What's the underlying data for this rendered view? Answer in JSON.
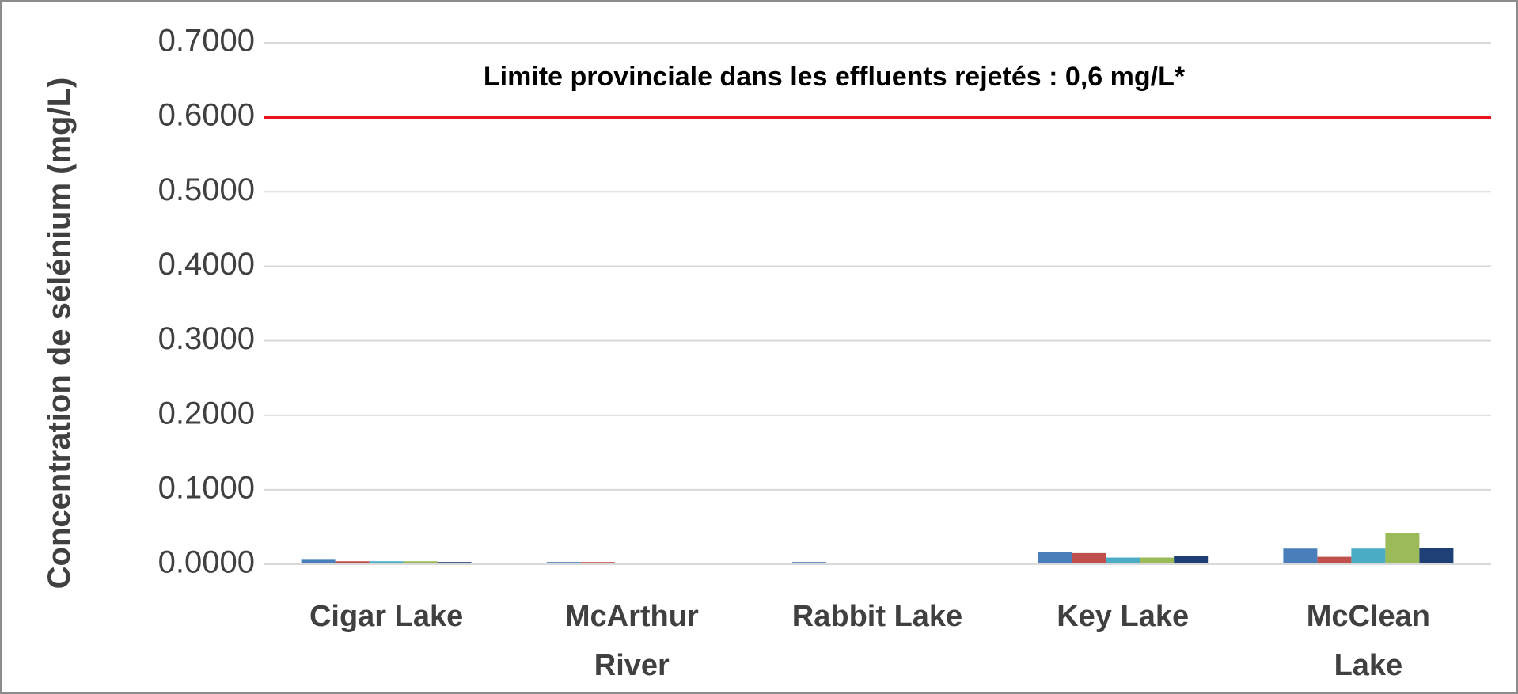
{
  "chart_data": {
    "type": "bar",
    "categories": [
      "Cigar Lake",
      "McArthur River",
      "Rabbit Lake",
      "Key Lake",
      "McClean Lake"
    ],
    "series": [
      {
        "color": "#4a7ebb",
        "values": [
          0.006,
          0.003,
          0.003,
          0.017,
          0.021
        ]
      },
      {
        "color": "#c0504d",
        "values": [
          0.004,
          0.003,
          0.002,
          0.015,
          0.01
        ]
      },
      {
        "color": "#4bacc6",
        "values": [
          0.004,
          0.002,
          0.002,
          0.009,
          0.021
        ]
      },
      {
        "color": "#9bbb59",
        "values": [
          0.004,
          0.002,
          0.002,
          0.009,
          0.042
        ]
      },
      {
        "color": "#1f3f77",
        "values": [
          0.003,
          0.001,
          0.002,
          0.011,
          0.022
        ]
      }
    ],
    "y_label": "Concentration de sélénium (mg/L)",
    "ylim": [
      0,
      0.7
    ],
    "yticks": [
      {
        "value": 0,
        "label": "0.0000"
      },
      {
        "value": 0.1,
        "label": "0.1000"
      },
      {
        "value": 0.2,
        "label": "0.2000"
      },
      {
        "value": 0.3,
        "label": "0.3000"
      },
      {
        "value": 0.4,
        "label": "0.4000"
      },
      {
        "value": 0.5,
        "label": "0.5000"
      },
      {
        "value": 0.6,
        "label": "0.6000"
      },
      {
        "value": 0.7,
        "label": "0.7000"
      }
    ],
    "grid": true,
    "reference_line": {
      "value": 0.6,
      "label": "Limite provinciale dans les effluents rejetés : 0,6 mg/L*",
      "color": "#e8141b"
    }
  }
}
